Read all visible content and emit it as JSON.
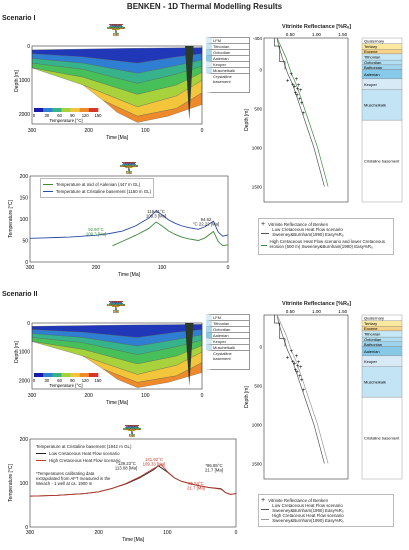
{
  "header": {
    "title": "BENKEN - 1D Thermal Modelling Results"
  },
  "strat": {
    "periods": [
      {
        "name": "Permian",
        "color": "#e25a4a"
      },
      {
        "name": "Triassic",
        "color": "#9b6fc3"
      },
      {
        "name": "Jurassic",
        "color": "#38b7e3"
      },
      {
        "name": "Cretaceous",
        "color": "#7dc86a"
      },
      {
        "name": "Paleogene",
        "color": "#f3a43c"
      },
      {
        "name": "Neo.",
        "color": "#f8dd2e"
      }
    ],
    "epochs": [
      {
        "name": "L",
        "color": "#ef8e7e"
      },
      {
        "name": "E",
        "color": "#f2b0a4"
      },
      {
        "name": "M",
        "color": "#c4a2dc"
      },
      {
        "name": "U",
        "color": "#b48bd3"
      },
      {
        "name": "L",
        "color": "#5fcbee"
      },
      {
        "name": "M",
        "color": "#8ad9f2"
      },
      {
        "name": "U",
        "color": "#b0e6f7"
      },
      {
        "name": "L/Cr",
        "color": "#9fd88c"
      },
      {
        "name": "U/Cr",
        "color": "#b8e3a4"
      },
      {
        "name": "Pal.",
        "color": "#f6bf6b"
      },
      {
        "name": "Eoc.",
        "color": "#f8cf8a"
      },
      {
        "name": "Olig.",
        "color": "#fbdfa9"
      },
      {
        "name": "Mio.",
        "color": "#fbeb73"
      }
    ]
  },
  "scenario1": {
    "title": "Scenario I",
    "burial": {
      "ylabel": "Depth [m]",
      "xlabel": "Time [Ma]",
      "xticks": [
        "300",
        "200",
        "100",
        "0"
      ],
      "yticks": [
        "0",
        "1000",
        "2000"
      ],
      "colorbar_label": "Temperature [°C]",
      "colorbar_ticks": [
        "0",
        "30",
        "60",
        "90",
        "120",
        "150"
      ],
      "layers": [
        "LFM",
        "Tithonian",
        "Oxfordian",
        "Aalenian",
        "Keuper",
        "Muschelkalk",
        "Crystalline basement"
      ]
    },
    "temp": {
      "ylabel": "Temperature [°C]",
      "xlabel": "Time [Ma]",
      "xticks": [
        "300",
        "200",
        "100",
        "0"
      ],
      "yticks": [
        "0",
        "50",
        "100",
        "150",
        "200"
      ],
      "legend": [
        "Temperature at mid of Aalenian (447 m GL)",
        "Temperature at Cristaline basement (1150 m GL)"
      ],
      "annotations": [
        "119.31°C 109.3 [Ma]",
        "94.62 °C 22.22 [Ma]",
        "92.90°C 109.3 [Ma]"
      ]
    },
    "vitrinite": {
      "title": "Vitrinite Reflectance [%Rₒ]",
      "xticks": [
        "0.50",
        "1.00",
        "1.50"
      ],
      "yticks": [
        "-404",
        "0",
        "500",
        "1000",
        "1500"
      ],
      "ylabel": "Depth [m]",
      "strat": [
        "Quaternary",
        "Tertiary",
        "Eocene",
        "Tithonian",
        "Oxfordian",
        "Bathonian",
        "Aalenian",
        "Keuper",
        "Muschelkalk",
        "Cristaline basement"
      ],
      "legend": [
        "Vitrinite Reflectance of Benken",
        "Low Cretaceous Heat Flow scenario Sweeney&Burnham(1990) Easy%Rₒ",
        "High Cretaceous Heat Flow scenario and lower Cretaceous erosion (600 m) Sweeney&Burnham(1990) Easy%Rₒ"
      ]
    }
  },
  "scenario2": {
    "title": "Scenario II",
    "burial": {
      "ylabel": "Depth [m]",
      "xlabel": "Time [Ma]",
      "xticks": [
        "300",
        "200",
        "100",
        "0"
      ],
      "yticks": [
        "0",
        "1000",
        "2000"
      ],
      "colorbar_label": "Temperature [°C]",
      "colorbar_ticks": [
        "0",
        "30",
        "60",
        "90",
        "120",
        "150"
      ],
      "layers": [
        "LFM",
        "Tithonian",
        "Oxfordian",
        "Aalenian",
        "Keuper",
        "Muschelkalk",
        "Crystalline basement"
      ]
    },
    "temp": {
      "ylabel": "Temperature [°C]",
      "xlabel": "Time [Ma]",
      "xticks": [
        "300",
        "200",
        "100",
        "0"
      ],
      "yticks": [
        "0",
        "100",
        "200"
      ],
      "legend_title": "Temperature at Cristaline basement (1942 m GL)",
      "legend": [
        "Low Cretaceous Heat Flow scenario",
        "High Cretaceous Heat Flow scenario"
      ],
      "note": "*Temperatures calibrating data extrapolated from AFT measured in the Weiach - 1 well at ca. 1900 m",
      "annotations": [
        "*139.23°C 113.08 [Ma]",
        "141.92°C 109.33 [Ma]",
        "*86.85°C 21.7 [Ma]",
        "86.54°C 21.7 [Ma]"
      ]
    },
    "vitrinite": {
      "title": "Vitrinite Reflectance [%Rₒ]",
      "xticks": [
        "0.50",
        "1.00",
        "1.50"
      ],
      "yticks": [
        "0",
        "500",
        "1000",
        "1500"
      ],
      "ylabel": "Depth [m]",
      "strat": [
        "Quaternary",
        "Tertiary",
        "Eocene",
        "Tithonian",
        "Oxfordian",
        "Bathonian",
        "Aalenian",
        "Keuper",
        "Muschelkalk",
        "Cristaline basement"
      ],
      "legend": [
        "Vitrinite Reflectance of Benken",
        "Low Cretaceous Heat Flow scenario Sweeney&Burnham(1990) Easy%Rₒ",
        "High Cretaceous Heat Flow scenario Sweeney&Burnham(1990) Easy%Rₒ"
      ]
    }
  },
  "chart_data": [
    {
      "type": "line",
      "title": "Scenario I",
      "xlabel": "Time [Ma]",
      "ylabel": "Temperature [°C]",
      "xlim": [
        300,
        0
      ],
      "ylim": [
        0,
        200
      ],
      "series": [
        {
          "name": "Temperature at mid of Aalenian (447 m GL)",
          "color": "#3d8a3d",
          "x": [
            175,
            160,
            140,
            120,
            109,
            100,
            90,
            80,
            70,
            60,
            45,
            35,
            22,
            15,
            8,
            0
          ],
          "y": [
            38,
            48,
            62,
            78,
            93,
            84,
            72,
            64,
            58,
            54,
            50,
            56,
            71,
            48,
            38,
            40
          ]
        },
        {
          "name": "Temperature at Cristaline basement (1150 m GL)",
          "color": "#2b4aa8",
          "x": [
            300,
            280,
            260,
            240,
            220,
            200,
            180,
            160,
            140,
            120,
            109,
            100,
            90,
            80,
            70,
            60,
            45,
            35,
            22,
            15,
            8,
            0
          ],
          "y": [
            55,
            56,
            57,
            58,
            60,
            62,
            66,
            72,
            84,
            102,
            119,
            110,
            98,
            90,
            84,
            80,
            76,
            82,
            95,
            70,
            60,
            63
          ]
        }
      ]
    },
    {
      "type": "line",
      "title": "Scenario II",
      "xlabel": "Time [Ma]",
      "ylabel": "Temperature [°C]",
      "xlim": [
        300,
        0
      ],
      "ylim": [
        0,
        200
      ],
      "series": [
        {
          "name": "Low Cretaceous Heat Flow scenario",
          "color": "#222222",
          "x": [
            300,
            260,
            220,
            200,
            180,
            160,
            140,
            120,
            113,
            100,
            90,
            80,
            60,
            40,
            22,
            15,
            8,
            0
          ],
          "y": [
            70,
            72,
            76,
            80,
            88,
            98,
            112,
            130,
            139,
            125,
            112,
            104,
            96,
            90,
            87,
            78,
            74,
            76
          ]
        },
        {
          "name": "High Cretaceous Heat Flow scenario",
          "color": "#c0392b",
          "x": [
            300,
            260,
            220,
            200,
            180,
            160,
            140,
            120,
            109,
            100,
            90,
            80,
            60,
            40,
            22,
            15,
            8,
            0
          ],
          "y": [
            70,
            72,
            76,
            80,
            88,
            99,
            114,
            133,
            142,
            126,
            112,
            104,
            96,
            90,
            86,
            78,
            74,
            76
          ]
        }
      ]
    },
    {
      "type": "scatter",
      "title": "Vitrinite Reflectance [%Rₒ]",
      "xlabel": "Vitrinite Reflectance [%Rₒ]",
      "ylabel": "Depth [m]",
      "xlim": [
        0,
        1.6
      ],
      "ylim": [
        1700,
        -404
      ],
      "series": [
        {
          "name": "Vitrinite Reflectance of Benken",
          "x": [
            0.45,
            0.52,
            0.55,
            0.58,
            0.62,
            0.64,
            0.6,
            0.66,
            0.7,
            0.63,
            0.68,
            0.72,
            0.75
          ],
          "y": [
            140,
            60,
            190,
            220,
            120,
            250,
            300,
            200,
            260,
            330,
            380,
            430,
            560
          ]
        }
      ]
    }
  ]
}
